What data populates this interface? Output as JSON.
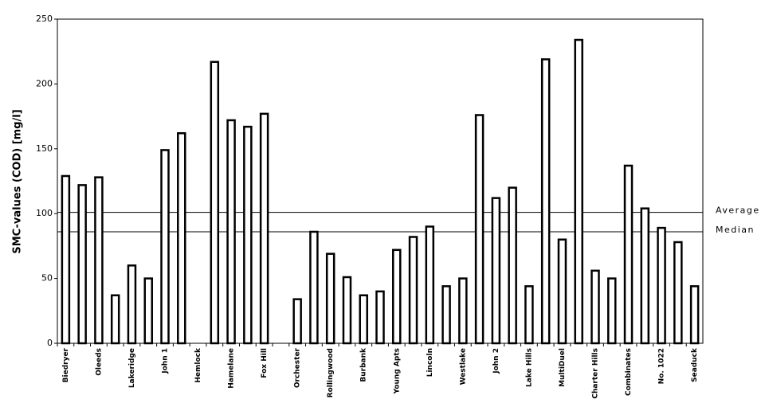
{
  "chart_data": {
    "type": "bar",
    "y_label": "SMC-values (COD) [mg/l]",
    "categories": [
      "Biedryer",
      null,
      "Oleeds",
      null,
      "Lakeridge",
      null,
      "John 1",
      null,
      "Hemlock",
      null,
      "Hamelane",
      null,
      "Fox Hill",
      null,
      "Orchester",
      null,
      "Rollingwood",
      null,
      "Burbank",
      null,
      "Young Apts",
      null,
      "Lincoln",
      null,
      "Westlake",
      null,
      "John 2",
      null,
      "Lake Hills",
      null,
      "MultiDuel",
      null,
      "Charter Hills",
      null,
      "Combinates",
      null,
      "No. 1022",
      null,
      "Seaduck"
    ],
    "values": [
      129,
      122,
      128,
      37,
      60,
      50,
      149,
      162,
      null,
      217,
      172,
      167,
      177,
      null,
      34,
      86,
      69,
      51,
      37,
      40,
      72,
      82,
      90,
      44,
      50,
      176,
      112,
      120,
      44,
      219,
      80,
      234,
      56,
      50,
      137,
      104,
      89,
      78,
      44
    ],
    "color": "#ffffff",
    "ylim": [
      0,
      250
    ],
    "yticks": [
      0,
      50,
      100,
      150,
      200,
      250
    ],
    "grid": false,
    "reference_lines": [
      {
        "label": "Average",
        "value": 101
      },
      {
        "label": "Median",
        "value": 86
      }
    ]
  }
}
